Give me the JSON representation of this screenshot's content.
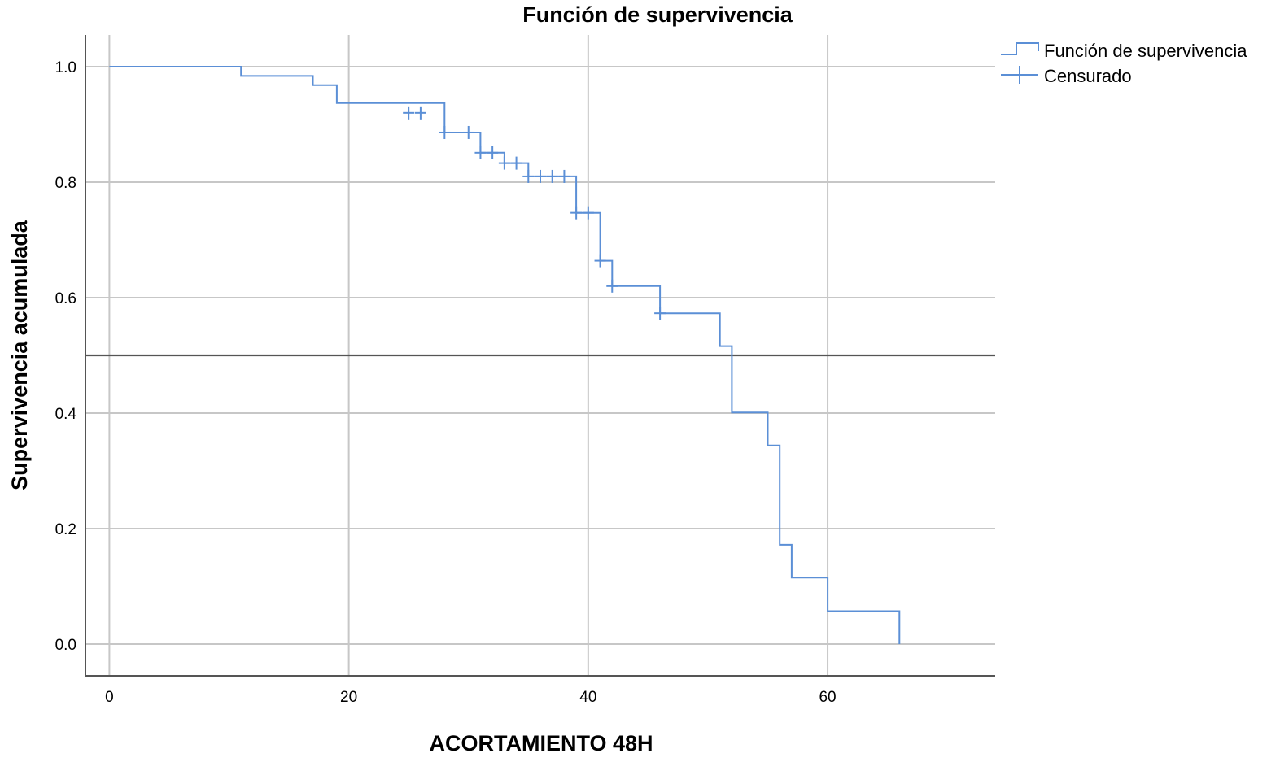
{
  "chart_data": {
    "type": "line",
    "step": true,
    "title": "Función de supervivencia",
    "xlabel": "ACORTAMIENTO 48H",
    "ylabel": "Supervivencia acumulada",
    "xlim": [
      -2,
      74
    ],
    "ylim": [
      -0.055,
      1.055
    ],
    "x_ticks": [
      0,
      20,
      40,
      60
    ],
    "x_tick_labels": [
      "0",
      "20",
      "40",
      "60"
    ],
    "y_ticks": [
      0.0,
      0.2,
      0.4,
      0.6,
      0.8,
      1.0
    ],
    "y_tick_labels": [
      "0.0",
      "0.2",
      "0.4",
      "0.6",
      "0.8",
      "1.0"
    ],
    "grid": true,
    "reference_line_y": 0.5,
    "colors": {
      "series": "#5b8fd6",
      "grid": "#c7c7c7",
      "axis": "#555555",
      "reference": "#555555"
    },
    "legend": {
      "position": "top-right",
      "entries": [
        {
          "label": "Función de supervivencia",
          "symbol": "step-line"
        },
        {
          "label": "Censurado",
          "symbol": "cross"
        }
      ]
    },
    "series": [
      {
        "name": "Función de supervivencia",
        "points": [
          [
            0,
            1.0
          ],
          [
            11,
            1.0
          ],
          [
            11,
            0.984
          ],
          [
            17,
            0.984
          ],
          [
            17,
            0.968
          ],
          [
            19,
            0.968
          ],
          [
            19,
            0.937
          ],
          [
            28,
            0.937
          ],
          [
            28,
            0.92
          ],
          [
            28,
            0.886
          ],
          [
            31,
            0.886
          ],
          [
            31,
            0.851
          ],
          [
            33,
            0.851
          ],
          [
            33,
            0.833
          ],
          [
            35,
            0.833
          ],
          [
            35,
            0.81
          ],
          [
            39,
            0.81
          ],
          [
            39,
            0.747
          ],
          [
            41,
            0.747
          ],
          [
            41,
            0.664
          ],
          [
            42,
            0.664
          ],
          [
            42,
            0.62
          ],
          [
            46,
            0.62
          ],
          [
            46,
            0.573
          ],
          [
            51,
            0.573
          ],
          [
            51,
            0.516
          ],
          [
            52,
            0.516
          ],
          [
            52,
            0.401
          ],
          [
            55,
            0.401
          ],
          [
            55,
            0.344
          ],
          [
            56,
            0.344
          ],
          [
            56,
            0.172
          ],
          [
            57,
            0.172
          ],
          [
            57,
            0.115
          ],
          [
            60,
            0.115
          ],
          [
            60,
            0.057
          ],
          [
            66,
            0.057
          ],
          [
            66,
            0.0
          ]
        ]
      },
      {
        "name": "Censurado",
        "points": [
          [
            25,
            0.92
          ],
          [
            26,
            0.92
          ],
          [
            28,
            0.886
          ],
          [
            30,
            0.886
          ],
          [
            31,
            0.851
          ],
          [
            32,
            0.851
          ],
          [
            33,
            0.833
          ],
          [
            34,
            0.833
          ],
          [
            35,
            0.81
          ],
          [
            36,
            0.81
          ],
          [
            37,
            0.81
          ],
          [
            38,
            0.81
          ],
          [
            39,
            0.747
          ],
          [
            40,
            0.747
          ],
          [
            41,
            0.664
          ],
          [
            42,
            0.62
          ],
          [
            46,
            0.573
          ]
        ]
      }
    ]
  }
}
